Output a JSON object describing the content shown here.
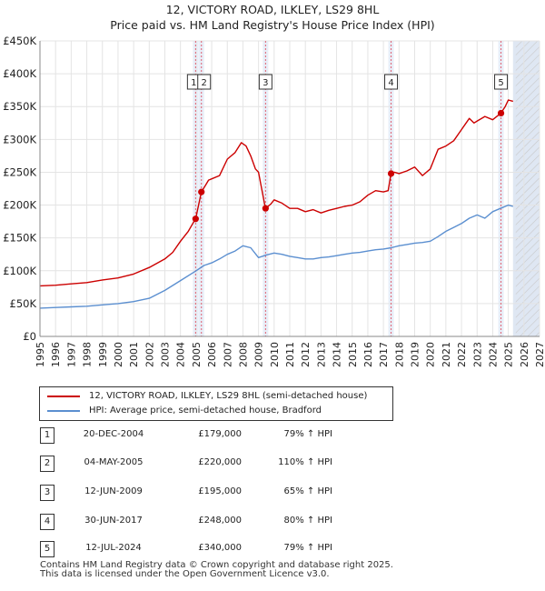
{
  "title_line1": "12, VICTORY ROAD, ILKLEY, LS29 8HL",
  "title_line2": "Price paid vs. HM Land Registry's House Price Index (HPI)",
  "colors": {
    "property": "#cc0000",
    "hpi": "#5b8fd0",
    "future_band": "#dfe7f3",
    "sale_band": "#e8eef8",
    "vline": "#e06070"
  },
  "chart_data": {
    "type": "line",
    "title": "12, VICTORY ROAD, ILKLEY, LS29 8HL",
    "xlim": [
      1995,
      2027
    ],
    "ylim": [
      0,
      450000
    ],
    "y_tick_labels": [
      "£0",
      "£50K",
      "£100K",
      "£150K",
      "£200K",
      "£250K",
      "£300K",
      "£350K",
      "£400K",
      "£450K"
    ],
    "y_tick_values": [
      0,
      50000,
      100000,
      150000,
      200000,
      250000,
      300000,
      350000,
      400000,
      450000
    ],
    "x_tick_labels": [
      "1995",
      "1996",
      "1997",
      "1998",
      "1999",
      "2000",
      "2001",
      "2002",
      "2003",
      "2004",
      "2005",
      "2006",
      "2007",
      "2008",
      "2009",
      "2010",
      "2011",
      "2012",
      "2013",
      "2014",
      "2015",
      "2016",
      "2017",
      "2018",
      "2019",
      "2020",
      "2021",
      "2022",
      "2023",
      "2024",
      "2025",
      "2026",
      "2027"
    ],
    "hatch_from": 2025.3,
    "series": [
      {
        "name": "12, VICTORY ROAD, ILKLEY, LS29 8HL (semi-detached house)",
        "x": [
          1995.0,
          1996.0,
          1997.0,
          1998.0,
          1999.0,
          2000.0,
          2001.0,
          2002.0,
          2003.0,
          2003.5,
          2004.0,
          2004.5,
          2004.96,
          2004.97,
          2005.34,
          2005.6,
          2005.8,
          2006.0,
          2006.5,
          2007.0,
          2007.5,
          2007.9,
          2008.2,
          2008.5,
          2008.8,
          2009.0,
          2009.44,
          2009.46,
          2009.8,
          2010.0,
          2010.5,
          2011.0,
          2011.5,
          2012.0,
          2012.5,
          2013.0,
          2013.5,
          2014.0,
          2014.5,
          2015.0,
          2015.5,
          2016.0,
          2016.5,
          2017.0,
          2017.3,
          2017.49,
          2017.7,
          2018.0,
          2018.5,
          2019.0,
          2019.5,
          2020.0,
          2020.5,
          2021.0,
          2021.5,
          2022.0,
          2022.5,
          2022.8,
          2023.0,
          2023.5,
          2024.0,
          2024.53,
          2024.8,
          2025.0,
          2025.3
        ],
        "values": [
          77000,
          78000,
          80000,
          82000,
          86000,
          89000,
          95000,
          105000,
          118000,
          128000,
          145000,
          160000,
          179000,
          179000,
          220000,
          230000,
          238000,
          240000,
          245000,
          270000,
          280000,
          295000,
          290000,
          275000,
          255000,
          250000,
          195000,
          195000,
          202000,
          208000,
          203000,
          195000,
          195000,
          190000,
          193000,
          188000,
          192000,
          195000,
          198000,
          200000,
          205000,
          215000,
          222000,
          220000,
          222000,
          248000,
          250000,
          248000,
          252000,
          258000,
          245000,
          255000,
          285000,
          290000,
          298000,
          315000,
          332000,
          325000,
          328000,
          335000,
          330000,
          340000,
          350000,
          360000,
          358000
        ]
      },
      {
        "name": "HPI: Average price, semi-detached house, Bradford",
        "x": [
          1995.0,
          1996.0,
          1997.0,
          1998.0,
          1999.0,
          2000.0,
          2001.0,
          2002.0,
          2003.0,
          2004.0,
          2005.0,
          2005.5,
          2006.0,
          2006.5,
          2007.0,
          2007.5,
          2008.0,
          2008.5,
          2009.0,
          2009.5,
          2010.0,
          2010.5,
          2011.0,
          2011.5,
          2012.0,
          2012.5,
          2013.0,
          2013.5,
          2014.0,
          2014.5,
          2015.0,
          2015.5,
          2016.0,
          2016.5,
          2017.0,
          2017.5,
          2018.0,
          2018.5,
          2019.0,
          2019.5,
          2020.0,
          2020.5,
          2021.0,
          2021.5,
          2022.0,
          2022.5,
          2023.0,
          2023.5,
          2024.0,
          2024.5,
          2025.0,
          2025.3
        ],
        "values": [
          43000,
          44000,
          45000,
          46000,
          48000,
          50000,
          53000,
          58000,
          70000,
          85000,
          100000,
          108000,
          112000,
          118000,
          125000,
          130000,
          138000,
          135000,
          120000,
          124000,
          127000,
          125000,
          122000,
          120000,
          118000,
          118000,
          120000,
          121000,
          123000,
          125000,
          127000,
          128000,
          130000,
          132000,
          133000,
          135000,
          138000,
          140000,
          142000,
          143000,
          145000,
          152000,
          160000,
          166000,
          172000,
          180000,
          185000,
          180000,
          190000,
          195000,
          200000,
          198000
        ]
      }
    ],
    "sales": [
      {
        "label": "1",
        "x": 2004.97,
        "value": 179000
      },
      {
        "label": "2",
        "x": 2005.34,
        "value": 220000
      },
      {
        "label": "3",
        "x": 2009.45,
        "value": 195000
      },
      {
        "label": "4",
        "x": 2017.49,
        "value": 248000
      },
      {
        "label": "5",
        "x": 2024.53,
        "value": 340000
      }
    ]
  },
  "legend": {
    "property_label": "12, VICTORY ROAD, ILKLEY, LS29 8HL (semi-detached house)",
    "hpi_label": "HPI: Average price, semi-detached house, Bradford"
  },
  "sales_table": [
    {
      "num": "1",
      "date": "20-DEC-2004",
      "price": "£179,000",
      "hpi": "79% ↑ HPI"
    },
    {
      "num": "2",
      "date": "04-MAY-2005",
      "price": "£220,000",
      "hpi": "110% ↑ HPI"
    },
    {
      "num": "3",
      "date": "12-JUN-2009",
      "price": "£195,000",
      "hpi": "65% ↑ HPI"
    },
    {
      "num": "4",
      "date": "30-JUN-2017",
      "price": "£248,000",
      "hpi": "80% ↑ HPI"
    },
    {
      "num": "5",
      "date": "12-JUL-2024",
      "price": "£340,000",
      "hpi": "79% ↑ HPI"
    }
  ],
  "footer": {
    "line1": "Contains HM Land Registry data © Crown copyright and database right 2025.",
    "line2": "This data is licensed under the Open Government Licence v3.0."
  }
}
